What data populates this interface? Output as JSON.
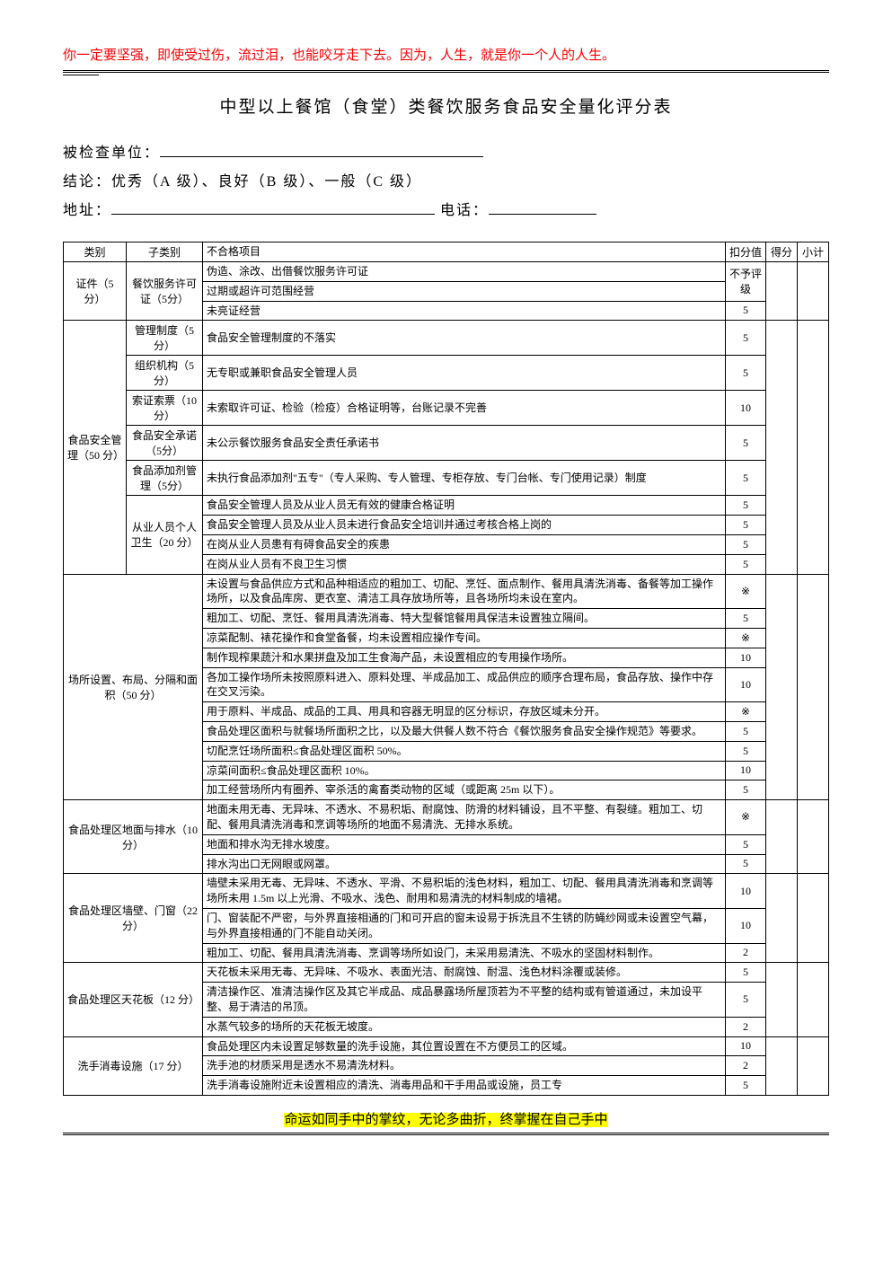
{
  "header_quote": "你一定要坚强，即使受过伤，流过泪，也能咬牙走下去。因为，人生，就是你一个人的人生。",
  "title": "中型以上餐馆（食堂）类餐饮服务食品安全量化评分表",
  "form": {
    "unit_label": "被检查单位：",
    "conclusion_label": "结论：优秀（A 级）、良好（B 级）、一般（C 级）",
    "address_label": "地址：",
    "phone_label": "电话："
  },
  "table_headers": {
    "category": "类别",
    "subcategory": "子类别",
    "item": "不合格项目",
    "deduct": "扣分值",
    "score": "得分",
    "subtotal": "小计"
  },
  "rows": [
    {
      "cat": "证件（5 分）",
      "catRow": 3,
      "sub": "餐饮服务许可证（5分）",
      "subRow": 3,
      "item": "伪造、涂改、出借餐饮服务许可证",
      "deduct": "不予评级",
      "deductRow": 2
    },
    {
      "item": "过期或超许可范围经营"
    },
    {
      "item": "未亮证经营",
      "deduct": "5"
    },
    {
      "cat": "食品安全管理（50 分）",
      "catRow": 9,
      "sub": "管理制度（5 分）",
      "subRow": 1,
      "item": "食品安全管理制度的不落实",
      "deduct": "5"
    },
    {
      "sub": "组织机构（5 分）",
      "subRow": 1,
      "item": "无专职或兼职食品安全管理人员",
      "deduct": "5"
    },
    {
      "sub": "索证索票（10 分）",
      "subRow": 1,
      "item": "未索取许可证、检验（检疫）合格证明等，台账记录不完善",
      "deduct": "10"
    },
    {
      "sub": "食品安全承诺（5分）",
      "subRow": 1,
      "item": "未公示餐饮服务食品安全责任承诺书",
      "deduct": "5"
    },
    {
      "sub": "食品添加剂管理（5分）",
      "subRow": 1,
      "item": "未执行食品添加剂\"五专\"（专人采购、专人管理、专柜存放、专门台帐、专门使用记录）制度",
      "deduct": "5"
    },
    {
      "sub": "从业人员个人卫生（20 分）",
      "subRow": 4,
      "item": "食品安全管理人员及从业人员无有效的健康合格证明",
      "deduct": "5"
    },
    {
      "item": "食品安全管理人员及从业人员未进行食品安全培训并通过考核合格上岗的",
      "deduct": "5"
    },
    {
      "item": "在岗从业人员患有有碍食品安全的疾患",
      "deduct": "5"
    },
    {
      "item": "在岗从业人员有不良卫生习惯",
      "deduct": "5"
    },
    {
      "cat": "场所设置、布局、分隔和面积（50 分）",
      "catRow": 10,
      "catCol": 2,
      "item": "未设置与食品供应方式和品种相适应的粗加工、切配、烹饪、面点制作、餐用具清洗消毒、备餐等加工操作场所，以及食品库房、更衣室、清洁工具存放场所等，且各场所均未设在室内。",
      "deduct": "※"
    },
    {
      "item": "粗加工、切配、烹饪、餐用具清洗消毒、特大型餐馆餐用具保洁未设置独立隔间。",
      "deduct": "5"
    },
    {
      "item": "凉菜配制、裱花操作和食堂备餐，均未设置相应操作专间。",
      "deduct": "※"
    },
    {
      "item": "制作现榨果蔬汁和水果拼盘及加工生食海产品，未设置相应的专用操作场所。",
      "deduct": "10"
    },
    {
      "item": "各加工操作场所未按照原料进入、原料处理、半成品加工、成品供应的顺序合理布局，食品存放、操作中存在交叉污染。",
      "deduct": "10"
    },
    {
      "item": "用于原料、半成品、成品的工具、用具和容器无明显的区分标识，存放区域未分开。",
      "deduct": "※"
    },
    {
      "item": "食品处理区面积与就餐场所面积之比，以及最大供餐人数不符合《餐饮服务食品安全操作规范》等要求。",
      "deduct": "5"
    },
    {
      "item": "切配烹饪场所面积≤食品处理区面积 50%。",
      "deduct": "5"
    },
    {
      "item": "凉菜间面积≤食品处理区面积 10%。",
      "deduct": "10"
    },
    {
      "item": "加工经营场所内有圈养、宰杀活的禽畜类动物的区域（或距离 25m 以下）。",
      "deduct": "5"
    },
    {
      "cat": "食品处理区地面与排水（10 分）",
      "catRow": 3,
      "catCol": 2,
      "item": "地面未用无毒、无异味、不透水、不易积垢、耐腐蚀、防滑的材料铺设，且不平整、有裂缝。粗加工、切配、餐用具清洗消毒和烹调等场所的地面不易清洗、无排水系统。",
      "deduct": "※"
    },
    {
      "item": "地面和排水沟无排水坡度。",
      "deduct": "5"
    },
    {
      "item": "排水沟出口无网眼或网罩。",
      "deduct": "5"
    },
    {
      "cat": "食品处理区墙壁、门窗（22 分）",
      "catRow": 3,
      "catCol": 2,
      "item": "墙壁未采用无毒、无异味、不透水、平滑、不易积垢的浅色材料，粗加工、切配、餐用具清洗消毒和烹调等场所未用 1.5m 以上光滑、不吸水、浅色、耐用和易清洗的材料制成的墙裙。",
      "deduct": "10"
    },
    {
      "item": "门、窗装配不严密，与外界直接相通的门和可开启的窗未设易于拆洗且不生锈的防蝇纱网或未设置空气幕，与外界直接相通的门不能自动关闭。",
      "deduct": "10"
    },
    {
      "item": "粗加工、切配、餐用具清洗消毒、烹调等场所如设门，未采用易清洗、不吸水的坚固材料制作。",
      "deduct": "2"
    },
    {
      "cat": "食品处理区天花板（12 分）",
      "catRow": 3,
      "catCol": 2,
      "item": "天花板未采用无毒、无异味、不吸水、表面光洁、耐腐蚀、耐温、浅色材料涂覆或装修。",
      "deduct": "5"
    },
    {
      "item": "清洁操作区、准清洁操作区及其它半成品、成品暴露场所屋顶若为不平整的结构或有管道通过，未加设平整、易于清洁的吊顶。",
      "deduct": "5"
    },
    {
      "item": "水蒸气较多的场所的天花板无坡度。",
      "deduct": "2"
    },
    {
      "cat": "洗手消毒设施（17 分）",
      "catRow": 3,
      "catCol": 2,
      "item": "食品处理区内未设置足够数量的洗手设施，其位置设置在不方便员工的区域。",
      "deduct": "10"
    },
    {
      "item": "洗手池的材质采用是透水不易清洗材料。",
      "deduct": "2"
    },
    {
      "item": "洗手消毒设施附近未设置相应的清洗、消毒用品和干手用品或设施，员工专",
      "deduct": "5"
    }
  ],
  "footer_quote": "命运如同手中的掌纹，无论多曲折，终掌握在自己手中"
}
